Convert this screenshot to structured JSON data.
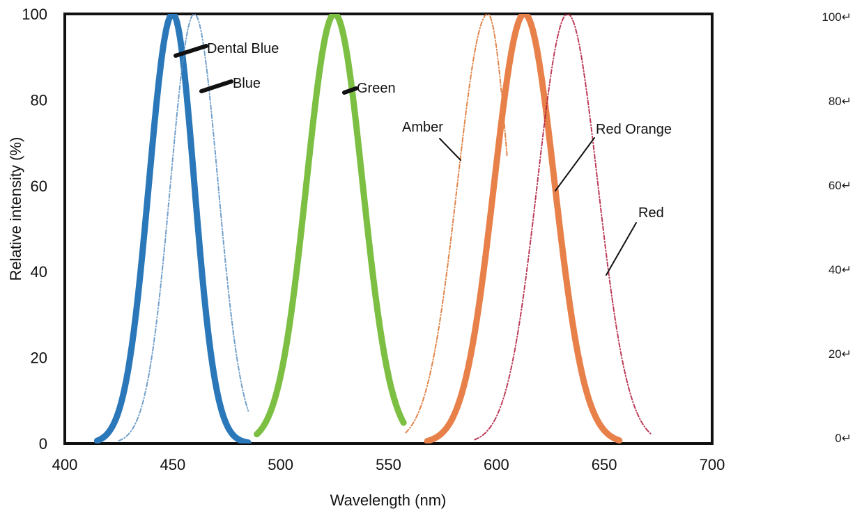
{
  "chart_data": {
    "type": "line",
    "title": "",
    "xlabel": "Wavelength (nm)",
    "ylabel": "Relative intensity (%)",
    "xlim": [
      400,
      700
    ],
    "ylim": [
      0,
      100
    ],
    "xticks": [
      "400",
      "450",
      "500",
      "550",
      "600",
      "650",
      "700"
    ],
    "yticks": [
      "0",
      "20",
      "40",
      "60",
      "80",
      "100"
    ],
    "right_ticks": [
      "100↵",
      "80↵",
      "60↵",
      "40↵",
      "20↵",
      "0↵"
    ],
    "grid": false,
    "legend": "none",
    "series": [
      {
        "name": "Dental Blue",
        "peak": 450,
        "width_left": 11,
        "width_right": 10,
        "start": 415,
        "end": 485,
        "color": "#2a78b9",
        "style": "bold"
      },
      {
        "name": "Blue",
        "peak": 460,
        "width_left": 11,
        "width_right": 11,
        "start": 425,
        "end": 485,
        "color": "#5b8fc0",
        "style": "faint"
      },
      {
        "name": "Green",
        "peak": 525,
        "width_left": 13,
        "width_right": 13,
        "start": 489,
        "end": 557,
        "color": "#7cbf43",
        "style": "bold"
      },
      {
        "name": "Amber",
        "peak": 596,
        "width_left": 14,
        "width_right": 10,
        "start": 558,
        "end": 605,
        "color": "#d9702a",
        "style": "faint"
      },
      {
        "name": "Red Orange",
        "peak": 613,
        "width_left": 14,
        "width_right": 14,
        "start": 568,
        "end": 657,
        "color": "#e8804a",
        "style": "bold"
      },
      {
        "name": "Red",
        "peak": 633,
        "width_left": 14,
        "width_right": 14,
        "start": 590,
        "end": 672,
        "color": "#b01a3a",
        "style": "faint"
      }
    ],
    "annotations": [
      {
        "text": "Dental Blue",
        "series": "Dental Blue"
      },
      {
        "text": "Blue",
        "series": "Blue"
      },
      {
        "text": "Green",
        "series": "Green"
      },
      {
        "text": "Amber",
        "series": "Amber"
      },
      {
        "text": "Red Orange",
        "series": "Red Orange"
      },
      {
        "text": "Red",
        "series": "Red"
      }
    ]
  }
}
